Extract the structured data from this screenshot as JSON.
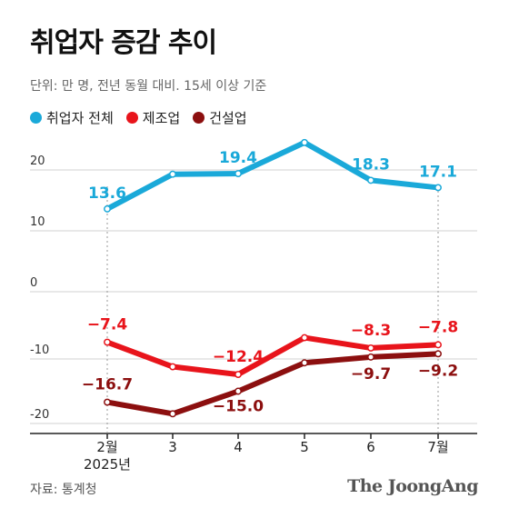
{
  "title": "취업자 증감 추이",
  "subtitle": "단위: 만 명, 전년 동월 대비. 15세 이상 기준",
  "source": "자료: 통계청",
  "brand": "The JoongAng",
  "colors": {
    "total": "#1aa9d9",
    "manufacturing": "#e8141b",
    "construction": "#8c0f0f",
    "grid": "#d0d0d0",
    "axis": "#222222"
  },
  "chart_data": {
    "type": "line",
    "categories": [
      "2월",
      "3",
      "4",
      "5",
      "6",
      "7월"
    ],
    "year_label": "2025년",
    "y_ticks_top": [
      "20",
      "10",
      "0"
    ],
    "y_ticks_bottom": [
      "-10",
      "-20"
    ],
    "series": [
      {
        "key": "total",
        "name": "취업자 전체",
        "values": [
          13.6,
          19.3,
          19.4,
          24.5,
          18.3,
          17.1
        ],
        "labels": [
          "13.6",
          "",
          "19.4",
          "",
          "18.3",
          "17.1"
        ]
      },
      {
        "key": "manufacturing",
        "name": "제조업",
        "values": [
          -7.4,
          -11.2,
          -12.4,
          -6.7,
          -8.3,
          -7.8
        ],
        "labels": [
          "−7.4",
          "",
          "−12.4",
          "",
          "−8.3",
          "−7.8"
        ]
      },
      {
        "key": "construction",
        "name": "건설업",
        "values": [
          -16.7,
          -18.5,
          -15.0,
          -10.6,
          -9.7,
          -9.2
        ],
        "labels": [
          "−16.7",
          "",
          "−15.0",
          "",
          "−9.7",
          "−9.2"
        ]
      }
    ]
  }
}
